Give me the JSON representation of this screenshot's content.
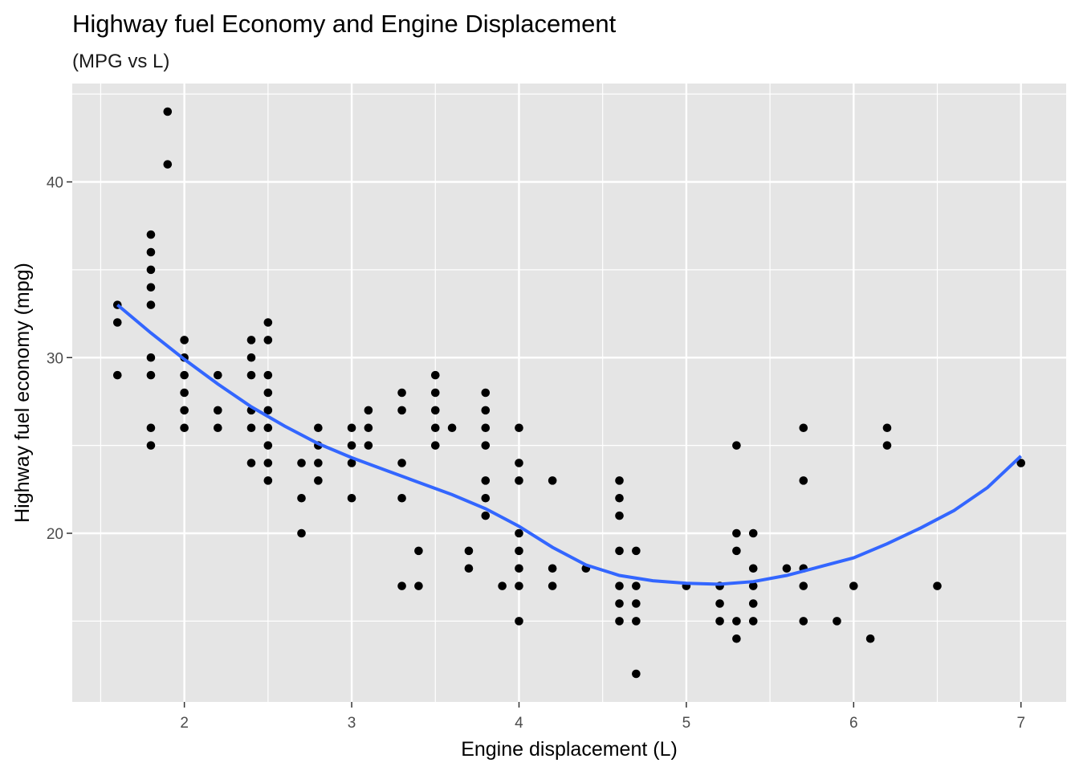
{
  "chart_data": {
    "type": "scatter",
    "title": "Highway fuel Economy and Engine Displacement",
    "subtitle": "(MPG vs L)",
    "xlabel": "Engine displacement (L)",
    "ylabel": "Highway fuel economy (mpg)",
    "xlim": [
      1.33,
      7.27
    ],
    "ylim": [
      10.4,
      45.6
    ],
    "x_ticks": [
      2,
      3,
      4,
      5,
      6,
      7
    ],
    "y_ticks": [
      20,
      30,
      40
    ],
    "x_tick_labels": [
      "2",
      "3",
      "4",
      "5",
      "6",
      "7"
    ],
    "y_tick_labels": [
      "20",
      "30",
      "40"
    ],
    "grid": true,
    "legend": "none",
    "colors": {
      "panel_background": "#e5e5e5",
      "grid": "#ffffff",
      "points": "#000000",
      "smooth_line": "#3366ff"
    },
    "series": [
      {
        "type": "scatter",
        "points": [
          [
            1.6,
            33
          ],
          [
            1.6,
            32
          ],
          [
            1.6,
            29
          ],
          [
            1.8,
            37
          ],
          [
            1.8,
            36
          ],
          [
            1.8,
            35
          ],
          [
            1.8,
            34
          ],
          [
            1.8,
            33
          ],
          [
            1.8,
            30
          ],
          [
            1.8,
            29
          ],
          [
            1.8,
            26
          ],
          [
            1.8,
            25
          ],
          [
            1.9,
            44
          ],
          [
            1.9,
            41
          ],
          [
            2.0,
            31
          ],
          [
            2.0,
            30
          ],
          [
            2.0,
            29
          ],
          [
            2.0,
            28
          ],
          [
            2.0,
            27
          ],
          [
            2.0,
            26
          ],
          [
            2.2,
            29
          ],
          [
            2.2,
            27
          ],
          [
            2.2,
            26
          ],
          [
            2.4,
            31
          ],
          [
            2.4,
            30
          ],
          [
            2.4,
            29
          ],
          [
            2.4,
            27
          ],
          [
            2.4,
            26
          ],
          [
            2.4,
            24
          ],
          [
            2.5,
            32
          ],
          [
            2.5,
            31
          ],
          [
            2.5,
            29
          ],
          [
            2.5,
            28
          ],
          [
            2.5,
            27
          ],
          [
            2.5,
            26
          ],
          [
            2.5,
            25
          ],
          [
            2.5,
            24
          ],
          [
            2.5,
            23
          ],
          [
            2.7,
            24
          ],
          [
            2.7,
            22
          ],
          [
            2.7,
            20
          ],
          [
            2.8,
            26
          ],
          [
            2.8,
            25
          ],
          [
            2.8,
            24
          ],
          [
            2.8,
            23
          ],
          [
            3.0,
            26
          ],
          [
            3.0,
            25
          ],
          [
            3.0,
            24
          ],
          [
            3.0,
            22
          ],
          [
            3.1,
            27
          ],
          [
            3.1,
            26
          ],
          [
            3.1,
            25
          ],
          [
            3.3,
            28
          ],
          [
            3.3,
            27
          ],
          [
            3.3,
            24
          ],
          [
            3.3,
            22
          ],
          [
            3.3,
            17
          ],
          [
            3.4,
            19
          ],
          [
            3.4,
            17
          ],
          [
            3.5,
            29
          ],
          [
            3.5,
            28
          ],
          [
            3.5,
            27
          ],
          [
            3.5,
            26
          ],
          [
            3.5,
            25
          ],
          [
            3.6,
            26
          ],
          [
            3.7,
            19
          ],
          [
            3.7,
            18
          ],
          [
            3.8,
            28
          ],
          [
            3.8,
            27
          ],
          [
            3.8,
            26
          ],
          [
            3.8,
            25
          ],
          [
            3.8,
            23
          ],
          [
            3.8,
            22
          ],
          [
            3.8,
            21
          ],
          [
            3.9,
            17
          ],
          [
            4.0,
            26
          ],
          [
            4.0,
            24
          ],
          [
            4.0,
            23
          ],
          [
            4.0,
            20
          ],
          [
            4.0,
            19
          ],
          [
            4.0,
            18
          ],
          [
            4.0,
            17
          ],
          [
            4.0,
            15
          ],
          [
            4.2,
            23
          ],
          [
            4.2,
            18
          ],
          [
            4.2,
            17
          ],
          [
            4.4,
            18
          ],
          [
            4.6,
            23
          ],
          [
            4.6,
            22
          ],
          [
            4.6,
            21
          ],
          [
            4.6,
            19
          ],
          [
            4.6,
            17
          ],
          [
            4.6,
            16
          ],
          [
            4.6,
            15
          ],
          [
            4.7,
            19
          ],
          [
            4.7,
            17
          ],
          [
            4.7,
            16
          ],
          [
            4.7,
            15
          ],
          [
            4.7,
            12
          ],
          [
            5.0,
            17
          ],
          [
            5.2,
            17
          ],
          [
            5.2,
            16
          ],
          [
            5.2,
            15
          ],
          [
            5.3,
            25
          ],
          [
            5.3,
            20
          ],
          [
            5.3,
            19
          ],
          [
            5.3,
            15
          ],
          [
            5.3,
            14
          ],
          [
            5.4,
            20
          ],
          [
            5.4,
            18
          ],
          [
            5.4,
            17
          ],
          [
            5.4,
            16
          ],
          [
            5.4,
            15
          ],
          [
            5.6,
            18
          ],
          [
            5.7,
            26
          ],
          [
            5.7,
            23
          ],
          [
            5.7,
            18
          ],
          [
            5.7,
            17
          ],
          [
            5.7,
            15
          ],
          [
            5.9,
            15
          ],
          [
            6.0,
            17
          ],
          [
            6.1,
            14
          ],
          [
            6.2,
            26
          ],
          [
            6.2,
            25
          ],
          [
            6.5,
            17
          ],
          [
            7.0,
            24
          ]
        ]
      },
      {
        "type": "line",
        "name": "",
        "points": [
          [
            1.6,
            33.0
          ],
          [
            1.8,
            31.4
          ],
          [
            2.0,
            29.9
          ],
          [
            2.2,
            28.5
          ],
          [
            2.4,
            27.2
          ],
          [
            2.6,
            26.1
          ],
          [
            2.8,
            25.1
          ],
          [
            3.0,
            24.3
          ],
          [
            3.2,
            23.6
          ],
          [
            3.4,
            22.9
          ],
          [
            3.6,
            22.2
          ],
          [
            3.8,
            21.4
          ],
          [
            4.0,
            20.4
          ],
          [
            4.2,
            19.2
          ],
          [
            4.4,
            18.2
          ],
          [
            4.6,
            17.6
          ],
          [
            4.8,
            17.3
          ],
          [
            5.0,
            17.15
          ],
          [
            5.2,
            17.1
          ],
          [
            5.4,
            17.25
          ],
          [
            5.6,
            17.6
          ],
          [
            5.8,
            18.1
          ],
          [
            6.0,
            18.6
          ],
          [
            6.2,
            19.4
          ],
          [
            6.4,
            20.3
          ],
          [
            6.6,
            21.3
          ],
          [
            6.8,
            22.6
          ],
          [
            7.0,
            24.4
          ]
        ]
      }
    ]
  }
}
